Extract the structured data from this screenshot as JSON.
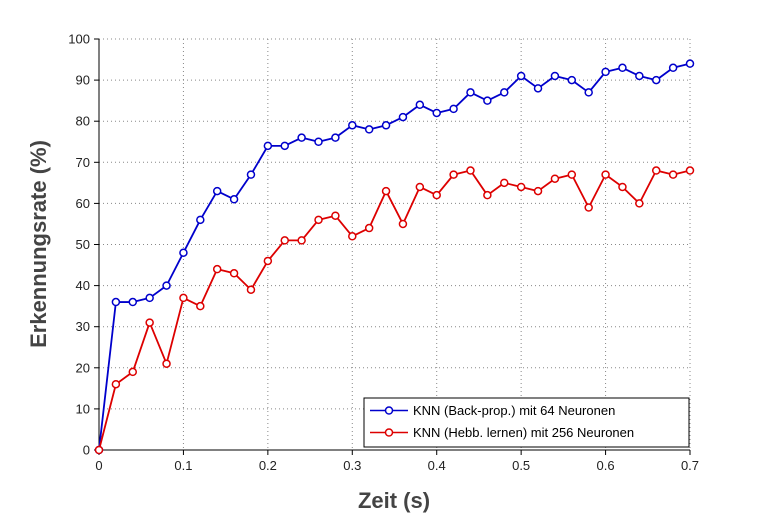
{
  "chart_data": {
    "type": "line",
    "xlabel": "Zeit (s)",
    "ylabel": "Erkennungsrate (%)",
    "xlim": [
      0,
      0.7
    ],
    "ylim": [
      0,
      100
    ],
    "xticks": [
      0,
      0.1,
      0.2,
      0.3,
      0.4,
      0.5,
      0.6,
      0.7
    ],
    "yticks": [
      0,
      10,
      20,
      30,
      40,
      50,
      60,
      70,
      80,
      90,
      100
    ],
    "grid": true,
    "legend_position": "bottom-right",
    "x": [
      0,
      0.02,
      0.04,
      0.06,
      0.08,
      0.1,
      0.12,
      0.14,
      0.16,
      0.18,
      0.2,
      0.22,
      0.24,
      0.26,
      0.28,
      0.3,
      0.32,
      0.34,
      0.36,
      0.38,
      0.4,
      0.42,
      0.44,
      0.46,
      0.48,
      0.5,
      0.52,
      0.54,
      0.56,
      0.58,
      0.6,
      0.62,
      0.64,
      0.66,
      0.68,
      0.7
    ],
    "series": [
      {
        "name": "KNN (Back-prop.) mit 64 Neuronen",
        "color": "#0000cc",
        "values": [
          0,
          36,
          36,
          37,
          40,
          48,
          56,
          63,
          61,
          67,
          74,
          74,
          76,
          75,
          76,
          79,
          78,
          79,
          81,
          84,
          82,
          83,
          87,
          85,
          87,
          91,
          88,
          91,
          90,
          87,
          92,
          93,
          91,
          90,
          93,
          94
        ]
      },
      {
        "name": "KNN (Hebb. lernen) mit 256 Neuronen",
        "color": "#dd0000",
        "values": [
          0,
          16,
          19,
          31,
          21,
          37,
          35,
          44,
          43,
          39,
          46,
          51,
          51,
          56,
          57,
          52,
          54,
          63,
          55,
          64,
          62,
          67,
          68,
          62,
          65,
          64,
          63,
          66,
          67,
          59,
          67,
          64,
          60,
          68,
          67,
          68
        ]
      }
    ]
  }
}
